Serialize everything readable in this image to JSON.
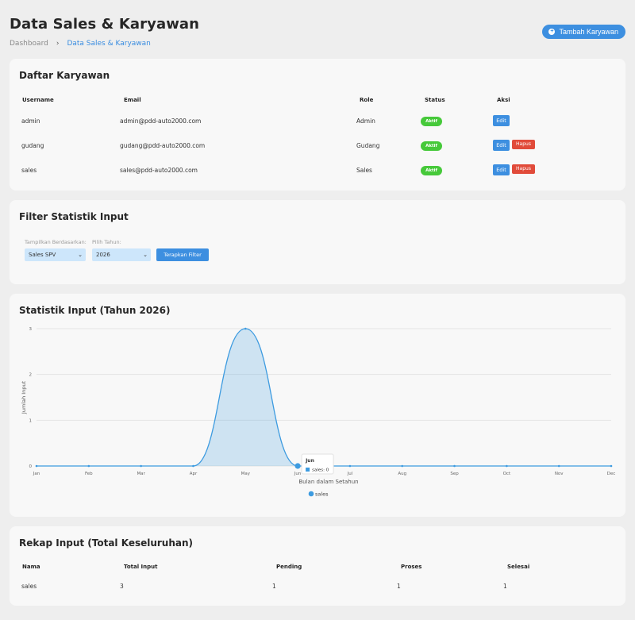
{
  "header": {
    "title": "Data Sales & Karyawan",
    "breadcrumb_home": "Dashboard",
    "breadcrumb_sep": "›",
    "breadcrumb_current": "Data Sales & Karyawan",
    "add_button": "Tambah Karyawan"
  },
  "employees": {
    "title": "Daftar Karyawan",
    "columns": [
      "Username",
      "Email",
      "Role",
      "Status",
      "Aksi"
    ],
    "rows": [
      {
        "username": "admin",
        "email": "admin@pdd-auto2000.com",
        "role": "Admin",
        "status": "Aktif",
        "edit": "Edit",
        "delete": null
      },
      {
        "username": "gudang",
        "email": "gudang@pdd-auto2000.com",
        "role": "Gudang",
        "status": "Aktif",
        "edit": "Edit",
        "delete": "Hapus"
      },
      {
        "username": "sales",
        "email": "sales@pdd-auto2000.com",
        "role": "Sales",
        "status": "Aktif",
        "edit": "Edit",
        "delete": "Hapus"
      }
    ]
  },
  "filter": {
    "title": "Filter Statistik Input",
    "view_label": "Tampilkan Berdasarkan:",
    "view_value": "Sales SPV",
    "year_label": "Pilih Tahun:",
    "year_value": "2026",
    "apply_button": "Terapkan Filter"
  },
  "stats": {
    "title": "Statistik Input (Tahun 2026)",
    "tooltip": {
      "title": "Jun",
      "series": "sales",
      "value": 0
    }
  },
  "chart_data": {
    "type": "area",
    "categories": [
      "Jan",
      "Feb",
      "Mar",
      "Apr",
      "May",
      "Jun",
      "Jul",
      "Aug",
      "Sep",
      "Oct",
      "Nov",
      "Dec"
    ],
    "series": [
      {
        "name": "sales",
        "values": [
          0,
          0,
          0,
          0,
          3,
          0,
          0,
          0,
          0,
          0,
          0,
          0
        ]
      }
    ],
    "xlabel": "Bulan dalam Setahun",
    "ylabel": "Jumlah Input",
    "ylim": [
      0,
      3
    ],
    "yticks": [
      0,
      1,
      2,
      3
    ],
    "grid": true,
    "legend": "bottom",
    "color": "#3d9be0"
  },
  "recap": {
    "title": "Rekap Input (Total Keseluruhan)",
    "columns": [
      "Nama",
      "Total Input",
      "Pending",
      "Proses",
      "Selesai"
    ],
    "rows": [
      [
        "sales",
        "3",
        "1",
        "1",
        "1"
      ]
    ]
  },
  "icons": {
    "add": "plus-circle-icon",
    "dropdown": "chevron-down-icon"
  }
}
